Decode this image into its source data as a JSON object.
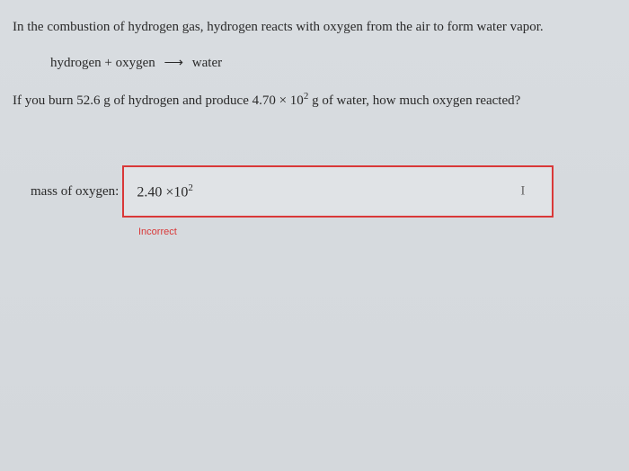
{
  "question": {
    "intro": "In the combustion of hydrogen gas, hydrogen reacts with oxygen from the air to form water vapor.",
    "equation_left": "hydrogen + oxygen",
    "equation_arrow": "⟶",
    "equation_right": "water",
    "prompt_part1": "If you burn 52.6 g of hydrogen and produce 4.70 × 10",
    "prompt_exp": "2",
    "prompt_part2": " g of water, how much oxygen reacted?"
  },
  "answer": {
    "label": "mass of oxygen:",
    "value_mantissa": "2.40",
    "value_times": " ×10",
    "value_exponent": "2",
    "cursor": "I",
    "feedback": "Incorrect",
    "box_border_color": "#d93838",
    "box_bg_color": "#e0e3e6",
    "feedback_color": "#d93838"
  },
  "page": {
    "background_color": "#d6dade",
    "text_color": "#2a2a2a",
    "font_family": "Georgia, serif"
  }
}
